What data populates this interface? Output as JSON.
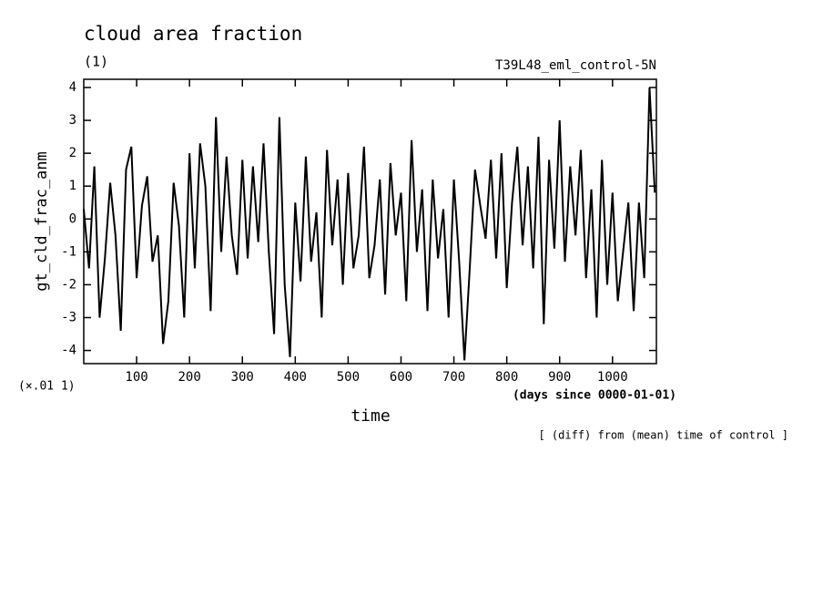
{
  "chart_data": {
    "type": "line",
    "title": "cloud area fraction",
    "subtitle": "(1)",
    "run_label": "T39L48_eml_control-5N",
    "y_label": "gt_cld_frac_anm",
    "y_scale_label": "(×.01 1)",
    "x_label": "time",
    "x_units_label": "(days since 0000-01-01)",
    "footnote": "[ (diff) from (mean) time of control ]",
    "x": [
      0,
      10,
      20,
      30,
      40,
      50,
      60,
      70,
      80,
      90,
      100,
      110,
      120,
      130,
      140,
      150,
      160,
      170,
      180,
      190,
      200,
      210,
      220,
      230,
      240,
      250,
      260,
      270,
      280,
      290,
      300,
      310,
      320,
      330,
      340,
      350,
      360,
      370,
      380,
      390,
      400,
      410,
      420,
      430,
      440,
      450,
      460,
      470,
      480,
      490,
      500,
      510,
      520,
      530,
      540,
      550,
      560,
      570,
      580,
      590,
      600,
      610,
      620,
      630,
      640,
      650,
      660,
      670,
      680,
      690,
      700,
      710,
      720,
      730,
      740,
      750,
      760,
      770,
      780,
      790,
      800,
      810,
      820,
      830,
      840,
      850,
      860,
      870,
      880,
      890,
      900,
      910,
      920,
      930,
      940,
      950,
      960,
      970,
      980,
      990,
      1000,
      1010,
      1020,
      1030,
      1040,
      1050,
      1060,
      1070,
      1080
    ],
    "series": [
      {
        "name": "gt_cld_frac_anm",
        "color": "#000000",
        "values": [
          0.3,
          -1.5,
          1.6,
          -3.0,
          -1.2,
          1.1,
          -0.5,
          -3.4,
          1.5,
          2.2,
          -1.8,
          0.4,
          1.3,
          -1.3,
          -0.5,
          -3.8,
          -2.5,
          1.1,
          -0.2,
          -3.0,
          2.0,
          -1.5,
          2.3,
          1.0,
          -2.8,
          3.1,
          -1.0,
          1.9,
          -0.5,
          -1.7,
          1.8,
          -1.2,
          1.6,
          -0.7,
          2.3,
          -1.0,
          -3.5,
          3.1,
          -2.0,
          -4.2,
          0.5,
          -1.9,
          1.9,
          -1.3,
          0.2,
          -3.0,
          2.1,
          -0.8,
          1.2,
          -2.0,
          1.4,
          -1.5,
          -0.5,
          2.2,
          -1.8,
          -0.8,
          1.2,
          -2.3,
          1.7,
          -0.5,
          0.8,
          -2.5,
          2.4,
          -1.0,
          0.9,
          -2.8,
          1.2,
          -1.2,
          0.3,
          -3.0,
          1.2,
          -1.3,
          -4.3,
          -1.5,
          1.5,
          0.4,
          -0.6,
          1.8,
          -1.2,
          2.0,
          -2.1,
          0.5,
          2.2,
          -0.8,
          1.6,
          -1.5,
          2.5,
          -3.2,
          1.8,
          -0.9,
          3.0,
          -1.3,
          1.6,
          -0.5,
          2.1,
          -1.8,
          0.9,
          -3.0,
          1.8,
          -2.0,
          0.8,
          -2.5,
          -1.0,
          0.5,
          -2.8,
          0.5,
          -1.8,
          4.0,
          0.8
        ]
      }
    ],
    "xlim": [
      0,
      1083
    ],
    "ylim": [
      -4.4,
      4.25
    ],
    "xticks": [
      100,
      200,
      300,
      400,
      500,
      600,
      700,
      800,
      900,
      1000
    ],
    "yticks": [
      -4,
      -3,
      -2,
      -1,
      0,
      1,
      2,
      3,
      4
    ]
  }
}
